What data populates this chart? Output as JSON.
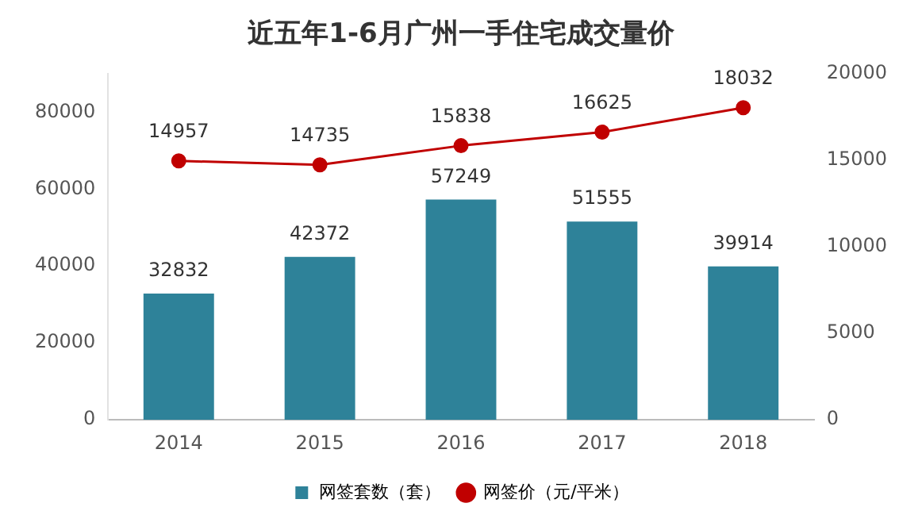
{
  "chart_data": {
    "type": "bar",
    "title": "近五年1-6月广州一手住宅成交量价",
    "categories": [
      "2014",
      "2015",
      "2016",
      "2017",
      "2018"
    ],
    "series": [
      {
        "name": "网签套数（套）",
        "color": "#2e8299",
        "values": [
          32832,
          42372,
          57249,
          51555,
          39914
        ]
      },
      {
        "name": "网签价（元/平米）",
        "type": "line",
        "axis": "y2",
        "color": "#c00000",
        "values": [
          14957,
          14735,
          15838,
          16625,
          18032
        ]
      }
    ],
    "ylim": [
      0,
      90000
    ],
    "yticks": [
      0,
      20000,
      40000,
      60000,
      80000
    ],
    "y2lim": [
      0,
      20000
    ],
    "y2ticks": [
      0,
      5000,
      10000,
      15000,
      20000
    ],
    "data_labels": true,
    "grid": false,
    "legend": "bottom",
    "marker": "circle",
    "line_style": "solid"
  }
}
